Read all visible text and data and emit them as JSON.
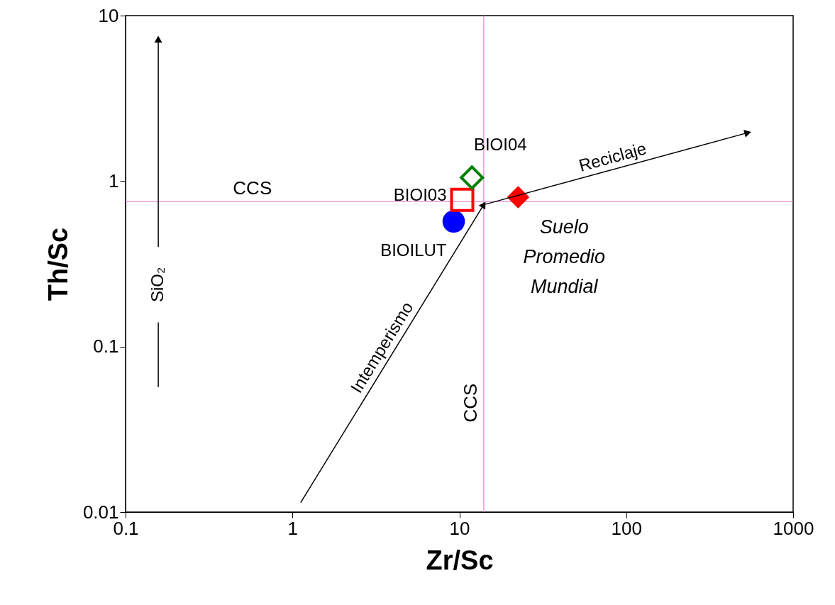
{
  "chart_data": {
    "type": "scatter",
    "xlabel": "Zr/Sc",
    "ylabel": "Th/Sc",
    "log": "xy",
    "grid": false,
    "legend": false,
    "xlim": [
      0.1,
      1000
    ],
    "ylim": [
      0.01,
      10
    ],
    "xticks": [
      0.1,
      1,
      10,
      100,
      1000
    ],
    "yticks": [
      0.01,
      0.1,
      1,
      10
    ],
    "series": [
      {
        "name": "BIOILUT",
        "marker": "circle",
        "color": "#0000ff",
        "x": [
          9.25
        ],
        "values": [
          0.57
        ]
      },
      {
        "name": "BIOI03",
        "marker": "square",
        "color": "#ff0000",
        "x": [
          10.4
        ],
        "values": [
          0.77
        ]
      },
      {
        "name": "BIOI04",
        "marker": "diamond",
        "color": "#008000",
        "x": [
          11.9
        ],
        "values": [
          1.05
        ]
      },
      {
        "name": "Suelo Promedio Mundial",
        "marker": "diamond",
        "color": "#ff0000",
        "x": [
          22.5
        ],
        "values": [
          0.8
        ]
      },
      {
        "type": "line",
        "color": "#000000",
        "x": [
          1.12,
          14
        ],
        "values": [
          0.0114,
          0.72
        ]
      },
      {
        "type": "line",
        "color": "#000000",
        "x": [
          14,
          535
        ],
        "values": [
          0.72,
          1.96
        ]
      },
      {
        "type": "line",
        "color": "#000000",
        "x": [
          0.157,
          0.157
        ],
        "values": [
          0.057,
          0.14
        ]
      },
      {
        "type": "line",
        "color": "#000000",
        "x": [
          0.157,
          0.157
        ],
        "values": [
          0.4,
          7.2
        ]
      }
    ],
    "ref_lines": [
      {
        "axis": "x",
        "value": 14,
        "label": "CCS",
        "color": "#e080e0"
      },
      {
        "axis": "y",
        "value": 0.75,
        "label": "CCS",
        "color": "#e080e0"
      }
    ],
    "annotations": [
      "Intemperismo",
      "Reciclaje",
      "SiO₂"
    ]
  }
}
